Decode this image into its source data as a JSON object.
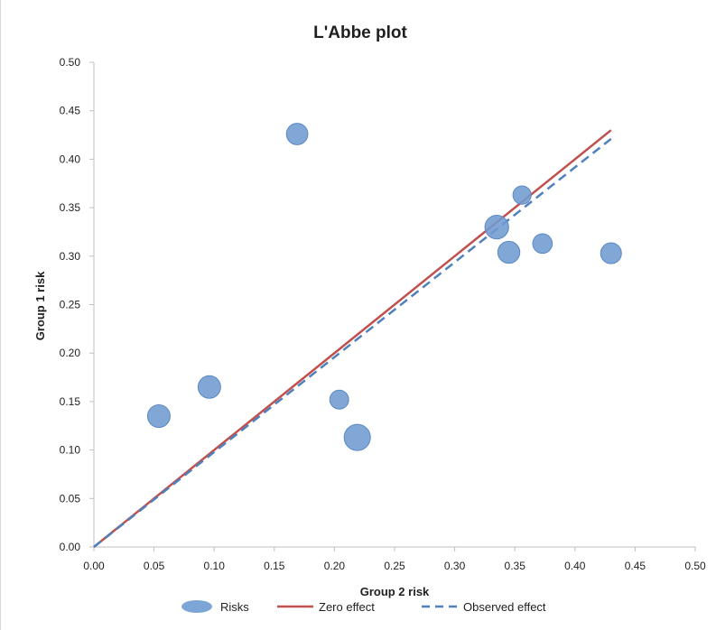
{
  "chart_data": {
    "type": "scatter",
    "title": "L'Abbe plot",
    "xlabel": "Group 2 risk",
    "ylabel": "Group 1 risk",
    "xlim": [
      0,
      0.5
    ],
    "ylim": [
      0,
      0.5
    ],
    "x_ticks": [
      "0.00",
      "0.05",
      "0.10",
      "0.15",
      "0.20",
      "0.25",
      "0.30",
      "0.35",
      "0.40",
      "0.45",
      "0.50"
    ],
    "y_ticks": [
      "0.00",
      "0.05",
      "0.10",
      "0.15",
      "0.20",
      "0.25",
      "0.30",
      "0.35",
      "0.40",
      "0.45",
      "0.50"
    ],
    "grid": false,
    "legend_position": "bottom",
    "series": [
      {
        "name": "Risks",
        "kind": "bubble",
        "color": "#6f9bd1",
        "points": [
          {
            "x": 0.054,
            "y": 0.135,
            "weight": 1.0
          },
          {
            "x": 0.096,
            "y": 0.165,
            "weight": 1.0
          },
          {
            "x": 0.169,
            "y": 0.426,
            "weight": 0.9
          },
          {
            "x": 0.204,
            "y": 0.152,
            "weight": 0.7
          },
          {
            "x": 0.219,
            "y": 0.113,
            "weight": 1.35
          },
          {
            "x": 0.335,
            "y": 0.33,
            "weight": 1.1
          },
          {
            "x": 0.345,
            "y": 0.304,
            "weight": 0.95
          },
          {
            "x": 0.356,
            "y": 0.363,
            "weight": 0.65
          },
          {
            "x": 0.373,
            "y": 0.313,
            "weight": 0.75
          },
          {
            "x": 0.43,
            "y": 0.303,
            "weight": 0.85
          }
        ]
      },
      {
        "name": "Zero effect",
        "kind": "line",
        "color": "#c0504d",
        "dash": "solid",
        "x": [
          0,
          0.43
        ],
        "y": [
          0,
          0.43
        ]
      },
      {
        "name": "Observed effect",
        "kind": "line",
        "color": "#4f81bd",
        "dash": "dashed",
        "x": [
          0,
          0.43
        ],
        "y": [
          0,
          0.421
        ]
      }
    ]
  }
}
